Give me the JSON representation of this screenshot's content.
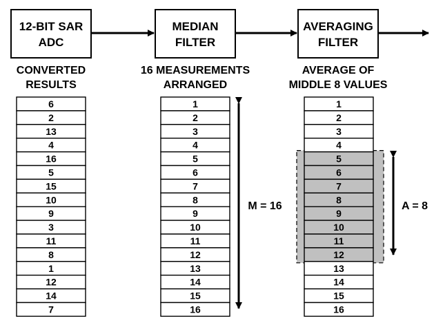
{
  "blocks": [
    {
      "line1": "12-BIT SAR",
      "line2": "ADC"
    },
    {
      "line1": "MEDIAN",
      "line2": "FILTER"
    },
    {
      "line1": "AVERAGING",
      "line2": "FILTER"
    }
  ],
  "columns": [
    {
      "line1": "CONVERTED",
      "line2": "RESULTS",
      "values": [
        "6",
        "2",
        "13",
        "4",
        "16",
        "5",
        "15",
        "10",
        "9",
        "3",
        "11",
        "8",
        "1",
        "12",
        "14",
        "7"
      ]
    },
    {
      "line1": "16 MEASUREMENTS",
      "line2": "ARRANGED",
      "values": [
        "1",
        "2",
        "3",
        "4",
        "5",
        "6",
        "7",
        "8",
        "9",
        "10",
        "11",
        "12",
        "13",
        "14",
        "15",
        "16"
      ]
    },
    {
      "line1": "AVERAGE OF",
      "line2": "MIDDLE 8 VALUES",
      "values": [
        "1",
        "2",
        "3",
        "4",
        "5",
        "6",
        "7",
        "8",
        "9",
        "10",
        "11",
        "12",
        "13",
        "14",
        "15",
        "16"
      ]
    }
  ],
  "highlight": {
    "start_index": 4,
    "end_index": 11,
    "color": "#c0c0c0"
  },
  "spans": {
    "m_label": "M = 16",
    "a_label": "A = 8"
  }
}
